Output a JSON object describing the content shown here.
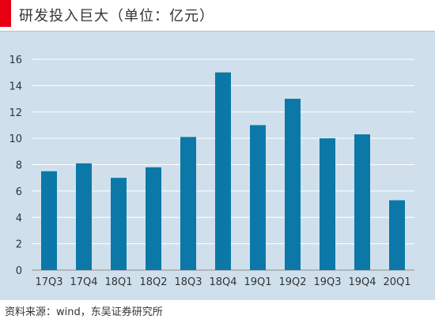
{
  "title": "研发投入巨大（单位：亿元）",
  "source": "资料来源：wind，东吴证券研究所",
  "colors": {
    "accent": "#e60012",
    "bar": "#0b78a8",
    "panel": "#cfe0ec",
    "grid": "#ffffff"
  },
  "chart_data": {
    "type": "bar",
    "title": "研发投入巨大（单位：亿元）",
    "xlabel": "",
    "ylabel": "",
    "categories": [
      "17Q3",
      "17Q4",
      "18Q1",
      "18Q2",
      "18Q3",
      "18Q4",
      "19Q1",
      "19Q2",
      "19Q3",
      "19Q4",
      "20Q1"
    ],
    "values": [
      7.5,
      8.1,
      7.0,
      7.8,
      10.1,
      15.0,
      11.0,
      13.0,
      10.0,
      10.3,
      5.3
    ],
    "ylim": [
      0,
      16
    ],
    "yticks": [
      0,
      2,
      4,
      6,
      8,
      10,
      12,
      14,
      16
    ],
    "grid": true,
    "legend": "none"
  }
}
